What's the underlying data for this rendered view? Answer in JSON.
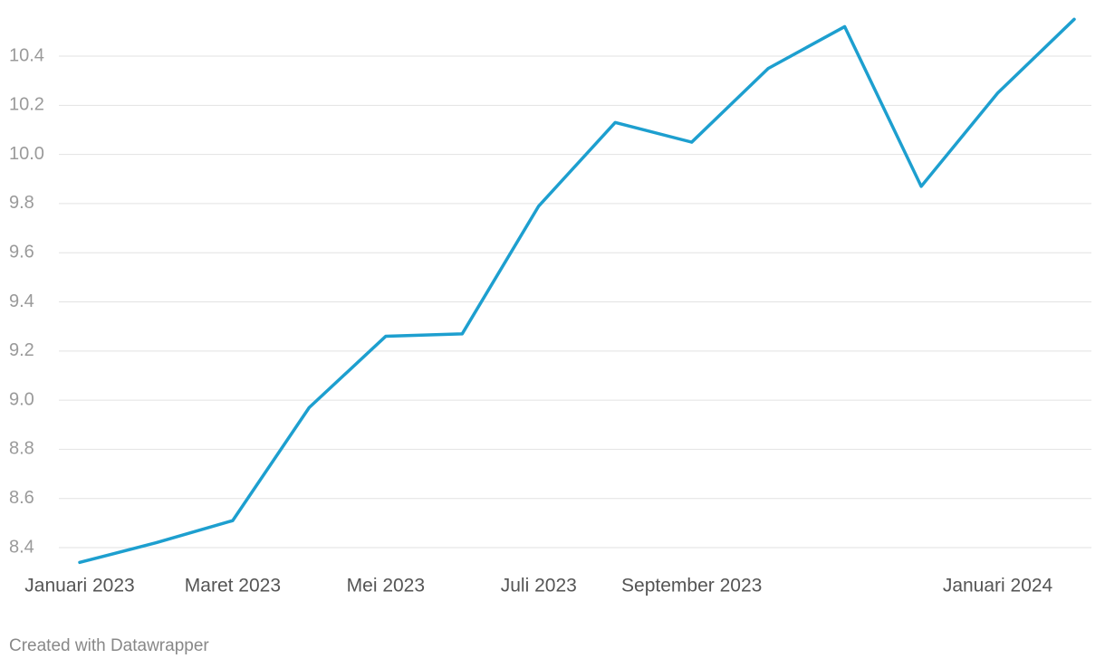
{
  "chart_data": {
    "type": "line",
    "categories": [
      "Januari 2023",
      null,
      "Maret 2023",
      null,
      "Mei 2023",
      null,
      "Juli 2023",
      null,
      "September 2023",
      null,
      null,
      null,
      "Januari 2024",
      null
    ],
    "series": [
      {
        "color": "#1d9fcf",
        "values": [
          8.34,
          8.42,
          8.51,
          8.97,
          9.26,
          9.27,
          9.79,
          10.13,
          10.05,
          10.35,
          10.52,
          9.87,
          10.25,
          10.55
        ]
      }
    ],
    "ylim": [
      8.34,
      10.56
    ],
    "yticks": [
      8.4,
      8.6,
      8.8,
      {
        "value": 9.0,
        "label": "9.0"
      },
      9.2,
      9.4,
      9.6,
      9.8,
      {
        "value": 10.0,
        "label": "10.0"
      },
      10.2,
      10.4
    ],
    "grid": true,
    "credit": "Created with Datawrapper"
  }
}
